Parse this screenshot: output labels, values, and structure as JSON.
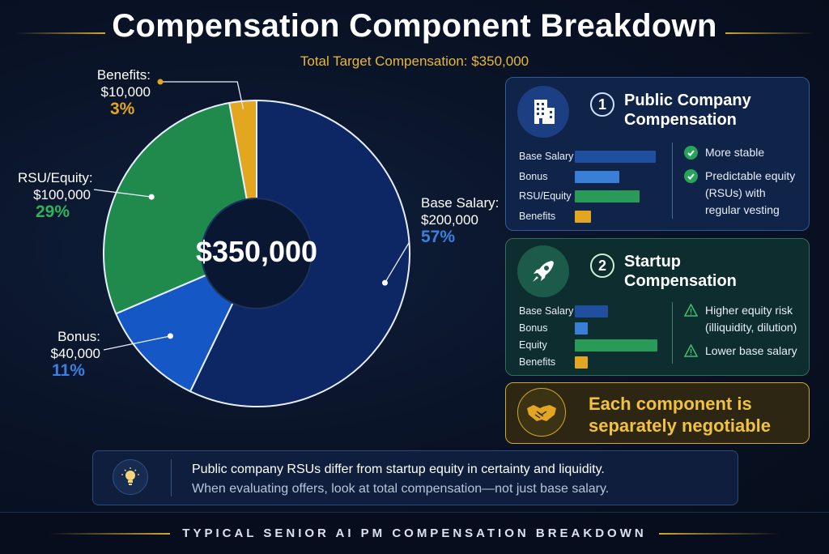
{
  "chart_data": {
    "type": "pie",
    "title": "Compensation Component Breakdown",
    "subtitle": "Total Target Compensation: $350,000",
    "center_label": "$350,000",
    "categories": [
      "Base Salary",
      "Bonus",
      "RSU/Equity",
      "Benefits"
    ],
    "values": [
      200000,
      40000,
      100000,
      10000
    ],
    "percentages": [
      57,
      11,
      29,
      3
    ],
    "colors": [
      "#0c2763",
      "#1557c4",
      "#1f8a4c",
      "#e3a621"
    ],
    "slice_labels": [
      {
        "name": "Base Salary:",
        "amount": "$200,000",
        "pct": "57%",
        "color": "#3b7fe0"
      },
      {
        "name": "Bonus:",
        "amount": "$40,000",
        "pct": "11%",
        "color": "#3b7fe0"
      },
      {
        "name": "RSU/Equity:",
        "amount": "$100,000",
        "pct": "29%",
        "color": "#2fb35a"
      },
      {
        "name": "Benefits:",
        "amount": "$10,000",
        "pct": "3%",
        "color": "#e3a621"
      }
    ]
  },
  "public_panel": {
    "number": "1",
    "title_line1": "Public Company",
    "title_line2": "Compensation",
    "icon": "building-icon",
    "bars": [
      {
        "label": "Base Salary",
        "value": 1.0,
        "color": "#1f4f9e"
      },
      {
        "label": "Bonus",
        "value": 0.55,
        "color": "#3a7fd6"
      },
      {
        "label": "RSU/Equity",
        "value": 0.8,
        "color": "#2a9a58"
      },
      {
        "label": "Benefits",
        "value": 0.2,
        "color": "#e3a621"
      }
    ],
    "points": [
      {
        "icon": "check-icon",
        "lines": [
          "More stable"
        ]
      },
      {
        "icon": "check-icon",
        "lines": [
          "Predictable equity",
          "(RSUs) with",
          "regular vesting"
        ]
      }
    ]
  },
  "startup_panel": {
    "number": "2",
    "title_line1": "Startup",
    "title_line2": "Compensation",
    "icon": "rocket-icon",
    "bars": [
      {
        "label": "Base Salary",
        "value": 0.4,
        "color": "#1f4f9e"
      },
      {
        "label": "Bonus",
        "value": 0.16,
        "color": "#3a7fd6"
      },
      {
        "label": "Equity",
        "value": 1.0,
        "color": "#2a9a58"
      },
      {
        "label": "Benefits",
        "value": 0.16,
        "color": "#e3a621"
      }
    ],
    "points": [
      {
        "icon": "warning-icon",
        "lines": [
          "Higher equity risk",
          "(illiquidity, dilution)"
        ]
      },
      {
        "icon": "warning-icon",
        "lines": [
          "Lower base salary"
        ]
      }
    ]
  },
  "negotiable": {
    "icon": "handshake-icon",
    "line1": "Each component is",
    "line2": "separately negotiable"
  },
  "tip": {
    "icon": "lightbulb-icon",
    "line1": "Public company RSUs differ from startup equity in certainty and liquidity.",
    "line2": "When evaluating offers, look at total compensation—not just base salary."
  },
  "footer": "TYPICAL SENIOR AI PM COMPENSATION BREAKDOWN",
  "accent_gold": "#d4a72c"
}
